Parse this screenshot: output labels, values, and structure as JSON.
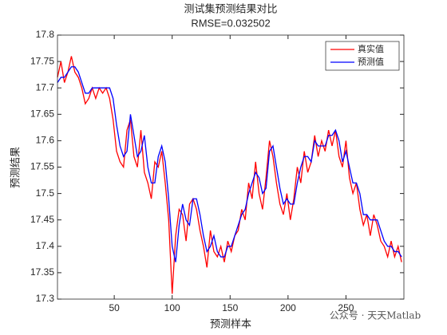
{
  "chart_data": {
    "type": "line",
    "title": "测试集预测结果对比",
    "subtitle": "RMSE=0.032502",
    "xlabel": "预测样本",
    "ylabel": "预测结果",
    "watermark": "公众号 · 天天Matlab",
    "legend": "top-right",
    "xlim": [
      1,
      300
    ],
    "xticks": [
      50,
      100,
      150,
      200,
      250
    ],
    "ylim": [
      17.3,
      17.8
    ],
    "yticks": [
      17.3,
      17.35,
      17.4,
      17.45,
      17.5,
      17.55,
      17.6,
      17.65,
      17.7,
      17.75,
      17.8
    ],
    "x": [
      1,
      4,
      7,
      10,
      13,
      16,
      19,
      22,
      25,
      28,
      31,
      34,
      37,
      40,
      43,
      46,
      49,
      52,
      55,
      58,
      61,
      64,
      67,
      70,
      73,
      76,
      79,
      82,
      85,
      88,
      91,
      94,
      97,
      100,
      103,
      106,
      109,
      112,
      115,
      118,
      121,
      124,
      127,
      130,
      133,
      136,
      139,
      142,
      145,
      148,
      151,
      154,
      157,
      160,
      163,
      166,
      169,
      172,
      175,
      178,
      181,
      184,
      187,
      190,
      193,
      196,
      199,
      202,
      205,
      208,
      211,
      214,
      217,
      220,
      223,
      226,
      229,
      232,
      235,
      238,
      241,
      244,
      247,
      250,
      253,
      256,
      259,
      262,
      265,
      268,
      271,
      274,
      277,
      280,
      283,
      286,
      289,
      292,
      295,
      298
    ],
    "series": [
      {
        "name": "真实值",
        "color": "#ff0000",
        "values": [
          17.72,
          17.75,
          17.71,
          17.73,
          17.76,
          17.73,
          17.72,
          17.7,
          17.67,
          17.68,
          17.7,
          17.68,
          17.7,
          17.69,
          17.7,
          17.68,
          17.64,
          17.58,
          17.56,
          17.55,
          17.62,
          17.64,
          17.57,
          17.55,
          17.62,
          17.54,
          17.52,
          17.49,
          17.56,
          17.55,
          17.58,
          17.52,
          17.45,
          17.31,
          17.42,
          17.47,
          17.46,
          17.41,
          17.48,
          17.49,
          17.47,
          17.43,
          17.4,
          17.36,
          17.43,
          17.39,
          17.38,
          17.4,
          17.37,
          17.41,
          17.39,
          17.42,
          17.43,
          17.47,
          17.45,
          17.52,
          17.49,
          17.56,
          17.5,
          17.47,
          17.53,
          17.6,
          17.57,
          17.52,
          17.48,
          17.46,
          17.5,
          17.45,
          17.49,
          17.55,
          17.52,
          17.58,
          17.54,
          17.56,
          17.61,
          17.57,
          17.6,
          17.58,
          17.62,
          17.59,
          17.62,
          17.57,
          17.55,
          17.6,
          17.53,
          17.5,
          17.52,
          17.47,
          17.44,
          17.46,
          17.42,
          17.46,
          17.44,
          17.41,
          17.4,
          17.38,
          17.41,
          17.38,
          17.4,
          17.37
        ]
      },
      {
        "name": "预测值",
        "color": "#0000ff",
        "values": [
          17.71,
          17.72,
          17.72,
          17.73,
          17.74,
          17.74,
          17.73,
          17.71,
          17.69,
          17.69,
          17.7,
          17.7,
          17.7,
          17.7,
          17.7,
          17.7,
          17.68,
          17.63,
          17.59,
          17.57,
          17.58,
          17.65,
          17.61,
          17.57,
          17.58,
          17.61,
          17.55,
          17.52,
          17.52,
          17.57,
          17.59,
          17.56,
          17.49,
          17.4,
          17.37,
          17.44,
          17.48,
          17.45,
          17.44,
          17.49,
          17.49,
          17.46,
          17.42,
          17.39,
          17.4,
          17.42,
          17.39,
          17.38,
          17.38,
          17.4,
          17.4,
          17.42,
          17.44,
          17.46,
          17.47,
          17.5,
          17.52,
          17.54,
          17.53,
          17.5,
          17.51,
          17.58,
          17.59,
          17.55,
          17.51,
          17.48,
          17.49,
          17.48,
          17.48,
          17.52,
          17.55,
          17.57,
          17.57,
          17.56,
          17.6,
          17.59,
          17.59,
          17.59,
          17.61,
          17.61,
          17.62,
          17.6,
          17.56,
          17.58,
          17.55,
          17.52,
          17.52,
          17.5,
          17.46,
          17.46,
          17.45,
          17.45,
          17.45,
          17.43,
          17.41,
          17.4,
          17.4,
          17.39,
          17.39,
          17.38
        ]
      }
    ]
  }
}
